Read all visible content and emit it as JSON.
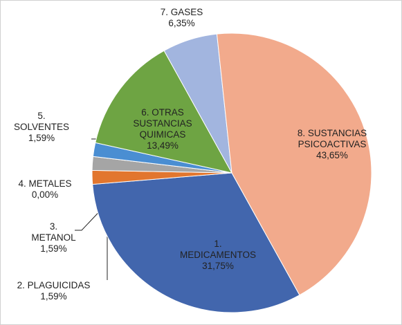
{
  "chart_data": {
    "type": "pie",
    "categories": [
      "1. MEDICAMENTOS",
      "2. PLAGUICIDAS",
      "3. METANOL",
      "4. METALES",
      "5. SOLVENTES",
      "6. OTRAS SUSTANCIAS QUIMICAS",
      "7. GASES",
      "8. SUSTANCIAS PSICOACTIVAS"
    ],
    "values": [
      31.75,
      1.59,
      1.59,
      0,
      1.59,
      13.49,
      6.35,
      43.65
    ],
    "value_labels": [
      "31,75%",
      "1,59%",
      "1,59%",
      "0,00%",
      "1,59%",
      "13,49%",
      "6,35%",
      "43,65%"
    ],
    "colors": [
      "#4266ad",
      "#e2762e",
      "#a5a5a5",
      "#ffc000",
      "#4a8ed2",
      "#6ea443",
      "#a2b5df",
      "#f2aa8c"
    ]
  }
}
